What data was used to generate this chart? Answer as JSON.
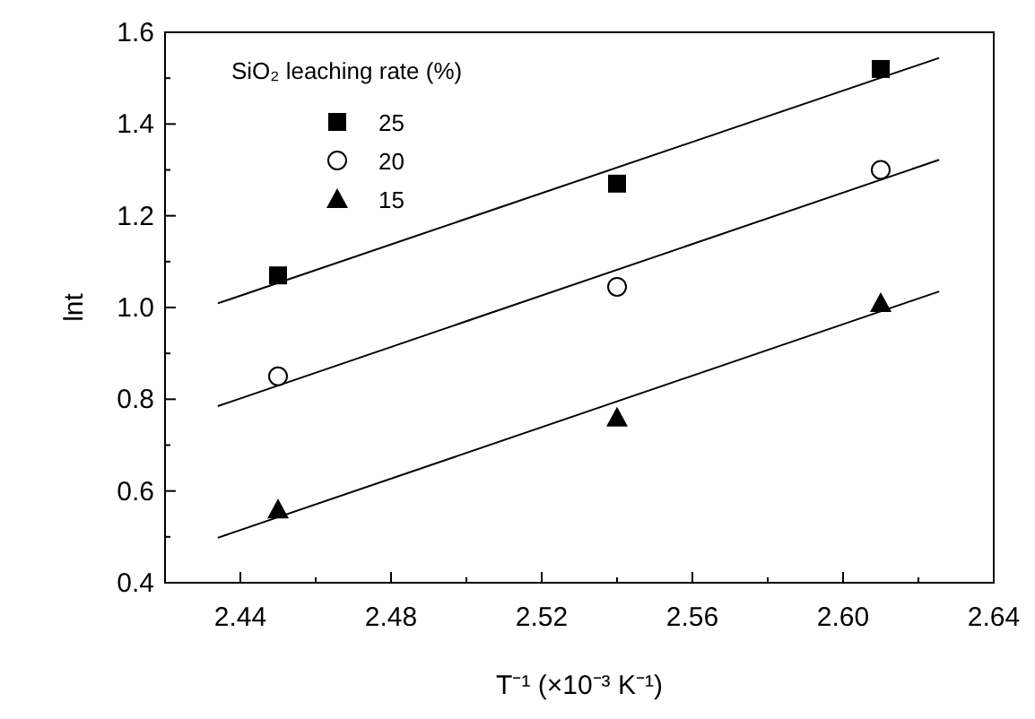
{
  "chart_data": {
    "type": "scatter",
    "xlabel": "T⁻¹ (×10⁻³ K⁻¹)",
    "ylabel": "lnt",
    "legend_title": "SiO₂ leaching rate (%)",
    "legend": "top left",
    "grid": false,
    "xlim": [
      2.42,
      2.64
    ],
    "ylim": [
      0.4,
      1.6
    ],
    "xticks": [
      {
        "value": 2.42,
        "label": null
      },
      2.44,
      {
        "value": 2.46,
        "label": null
      },
      2.48,
      {
        "value": 2.5,
        "label": null
      },
      2.52,
      {
        "value": 2.54,
        "label": null
      },
      2.56,
      {
        "value": 2.58,
        "label": null
      },
      {
        "value": 2.6,
        "label": "2.60"
      },
      {
        "value": 2.62,
        "label": null
      },
      2.64
    ],
    "yticks": [
      0.4,
      {
        "value": 0.5,
        "label": null
      },
      0.6,
      {
        "value": 0.7,
        "label": null
      },
      0.8,
      {
        "value": 0.9,
        "label": null
      },
      {
        "value": 1.0,
        "label": "1.0"
      },
      {
        "value": 1.1,
        "label": null
      },
      1.2,
      {
        "value": 1.3,
        "label": null
      },
      1.4,
      {
        "value": 1.5,
        "label": null
      },
      1.6
    ],
    "series": [
      {
        "name": "25",
        "marker": "square",
        "color": "#000000",
        "x": [
          2.45,
          2.54,
          2.61
        ],
        "values": [
          1.07,
          1.27,
          1.52
        ]
      },
      {
        "name": "20",
        "marker": "circle",
        "color": "#000000",
        "x": [
          2.45,
          2.54,
          2.61
        ],
        "values": [
          0.85,
          1.045,
          1.3
        ]
      },
      {
        "name": "15",
        "marker": "triangle",
        "color": "#000000",
        "x": [
          2.45,
          2.54,
          2.61
        ],
        "values": [
          0.56,
          0.76,
          1.01
        ]
      },
      {
        "type": "line",
        "color": "#000000",
        "x": [
          2.434,
          2.6255
        ],
        "values": [
          1.009,
          1.544
        ]
      },
      {
        "type": "line",
        "color": "#000000",
        "x": [
          2.434,
          2.6255
        ],
        "values": [
          0.785,
          1.322
        ]
      },
      {
        "type": "line",
        "color": "#000000",
        "x": [
          2.434,
          2.6255
        ],
        "values": [
          0.498,
          1.035
        ]
      }
    ]
  }
}
